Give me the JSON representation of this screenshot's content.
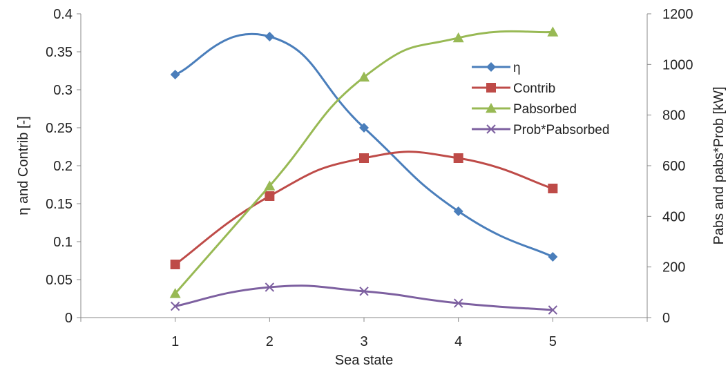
{
  "chart_data": {
    "type": "line",
    "categories": [
      "1",
      "2",
      "3",
      "4",
      "5"
    ],
    "xlabel": "Sea state",
    "ylabel_left": "η and Contrib [-]",
    "ylabel_right": "Pabs and pabs*Prob [kW]",
    "ylim_left": [
      0,
      0.4
    ],
    "ylim_right": [
      0,
      1200
    ],
    "yticks_left": [
      "0",
      "0.05",
      "0.1",
      "0.15",
      "0.2",
      "0.25",
      "0.3",
      "0.35",
      "0.4"
    ],
    "yticks_right": [
      "0",
      "200",
      "400",
      "600",
      "800",
      "1000",
      "1200"
    ],
    "grid": false,
    "legend_position": "top-right",
    "series": [
      {
        "name": "η",
        "axis": "left",
        "marker": "diamond",
        "color": "#4a7ebb",
        "values": [
          0.32,
          0.37,
          0.25,
          0.14,
          0.08
        ]
      },
      {
        "name": "Contrib",
        "axis": "left",
        "marker": "square",
        "color": "#be4b48",
        "values": [
          0.07,
          0.16,
          0.21,
          0.21,
          0.17
        ]
      },
      {
        "name": "Pabsorbed",
        "axis": "right",
        "marker": "triangle",
        "color": "#98b954",
        "values": [
          95,
          520,
          950,
          1105,
          1128
        ]
      },
      {
        "name": "Prob*Pabsorbed",
        "axis": "right",
        "marker": "x",
        "color": "#7d60a0",
        "values": [
          45,
          120,
          104,
          57,
          30
        ]
      }
    ]
  }
}
